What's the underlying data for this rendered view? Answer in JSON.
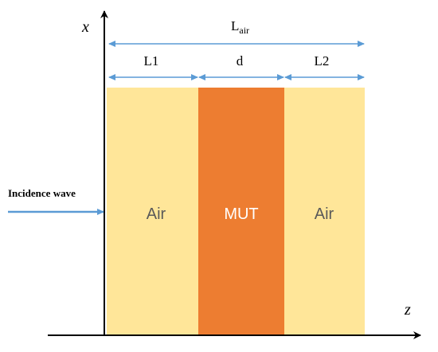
{
  "axes": {
    "x": "x",
    "z": "z"
  },
  "dimensions": {
    "total": {
      "main": "L",
      "sub": "air"
    },
    "left": "L1",
    "middle": "d",
    "right": "L2"
  },
  "source": "Incidence wave",
  "regions": [
    {
      "label": "Air"
    },
    {
      "label": "MUT"
    },
    {
      "label": "Air"
    }
  ]
}
